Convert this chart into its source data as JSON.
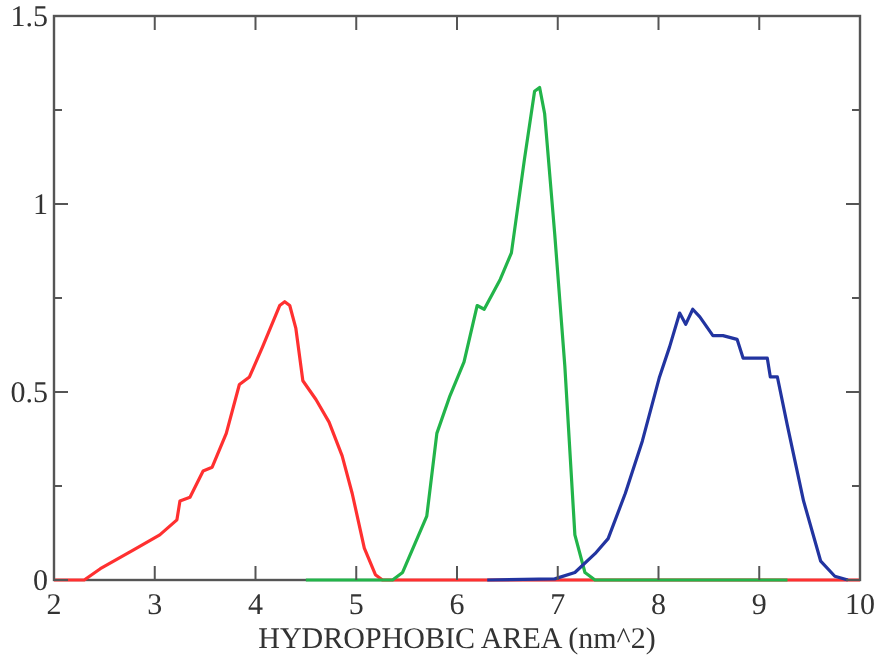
{
  "chart_data": {
    "type": "line",
    "xlabel": "HYDROPHOBIC AREA (nm^2)",
    "xlim": [
      2,
      10
    ],
    "ylim": [
      0,
      1.5
    ],
    "xticks": [
      2,
      3,
      4,
      5,
      6,
      7,
      8,
      9,
      10
    ],
    "yticks": [
      0,
      {
        "value": 0.25,
        "label": null
      },
      {
        "value": 0.5,
        "label": "0.5"
      },
      {
        "value": 0.75,
        "label": null
      },
      1,
      {
        "value": 1.25,
        "label": null
      },
      1.5
    ],
    "grid": false,
    "marker": "none",
    "line_style": "solid",
    "series": [
      {
        "color": "#ff3030",
        "x": [
          2,
          2.3,
          2.46,
          2.79,
          3.05,
          3.22,
          3.25,
          3.35,
          3.48,
          3.57,
          3.71,
          3.84,
          3.94,
          4.07,
          4.24,
          4.29,
          4.34,
          4.4,
          4.47,
          4.6,
          4.73,
          4.86,
          4.96,
          5.08,
          5.19,
          5.26,
          10
        ],
        "values": [
          0,
          0,
          0.03,
          0.08,
          0.12,
          0.16,
          0.21,
          0.22,
          0.29,
          0.3,
          0.39,
          0.52,
          0.54,
          0.62,
          0.73,
          0.74,
          0.73,
          0.67,
          0.53,
          0.48,
          0.42,
          0.33,
          0.23,
          0.085,
          0.014,
          0,
          0
        ]
      },
      {
        "color": "#22b44a",
        "x": [
          4.5,
          5.36,
          5.46,
          5.7,
          5.8,
          5.93,
          6.07,
          6.2,
          6.27,
          6.43,
          6.54,
          6.67,
          6.77,
          6.82,
          6.87,
          6.97,
          7.07,
          7.17,
          7.27,
          7.37,
          9.28
        ],
        "values": [
          0,
          0,
          0.02,
          0.17,
          0.39,
          0.49,
          0.58,
          0.73,
          0.72,
          0.8,
          0.87,
          1.12,
          1.3,
          1.31,
          1.24,
          0.92,
          0.57,
          0.12,
          0.02,
          0,
          0
        ]
      },
      {
        "color": "#2234a0",
        "x": [
          6.3,
          6.97,
          7.17,
          7.37,
          7.5,
          7.67,
          7.84,
          8.01,
          8.11,
          8.21,
          8.27,
          8.34,
          8.41,
          8.54,
          8.64,
          8.78,
          8.84,
          9.08,
          9.11,
          9.18,
          9.28,
          9.44,
          9.61,
          9.75,
          9.88
        ],
        "values": [
          0,
          0.003,
          0.02,
          0.07,
          0.11,
          0.23,
          0.37,
          0.54,
          0.62,
          0.71,
          0.68,
          0.72,
          0.7,
          0.65,
          0.65,
          0.64,
          0.59,
          0.59,
          0.54,
          0.54,
          0.41,
          0.21,
          0.05,
          0.01,
          0
        ]
      }
    ]
  }
}
